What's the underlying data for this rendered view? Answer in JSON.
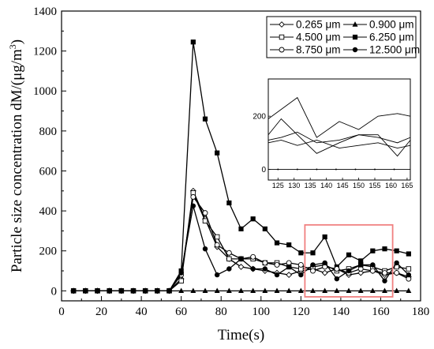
{
  "chart_data": {
    "type": "line",
    "xlabel": "Time(s)",
    "ylabel_prefix": "Particle size concentration dM/(μg/m",
    "ylabel_sup": "3",
    "ylabel_suffix": ")",
    "xlim": [
      0,
      180
    ],
    "ylim": [
      -50,
      1400
    ],
    "x_ticks": [
      0,
      20,
      40,
      60,
      80,
      100,
      120,
      140,
      160,
      180
    ],
    "y_ticks": [
      0,
      200,
      400,
      600,
      800,
      1000,
      1200,
      1400
    ],
    "x": [
      6,
      12,
      18,
      24,
      30,
      36,
      42,
      48,
      54,
      60,
      66,
      72,
      78,
      84,
      90,
      96,
      102,
      108,
      114,
      120,
      126,
      132,
      138,
      144,
      150,
      156,
      162,
      168,
      174
    ],
    "legend_position": "top-right",
    "series": [
      {
        "name": "0.265 μm",
        "marker": "diamond-open",
        "color": "#000000",
        "values": [
          0,
          0,
          0,
          0,
          0,
          0,
          0,
          0,
          0,
          60,
          500,
          360,
          220,
          160,
          120,
          110,
          100,
          90,
          80,
          100,
          110,
          90,
          110,
          80,
          90,
          100,
          80,
          90,
          70
        ]
      },
      {
        "name": "0.900 μm",
        "marker": "triangle-filled",
        "color": "#000000",
        "values": [
          0,
          0,
          0,
          0,
          0,
          0,
          0,
          0,
          0,
          0,
          0,
          0,
          0,
          0,
          0,
          0,
          0,
          0,
          0,
          0,
          0,
          0,
          0,
          0,
          0,
          0,
          0,
          0,
          0
        ]
      },
      {
        "name": "4.500 μm",
        "marker": "square-open",
        "color": "#000000",
        "values": [
          0,
          0,
          0,
          0,
          0,
          0,
          0,
          0,
          0,
          50,
          490,
          350,
          270,
          160,
          160,
          160,
          140,
          140,
          120,
          110,
          120,
          130,
          100,
          110,
          130,
          120,
          100,
          120,
          110
        ]
      },
      {
        "name": "6.250 μm",
        "marker": "square-filled",
        "color": "#000000",
        "values": [
          0,
          0,
          0,
          0,
          0,
          0,
          0,
          0,
          0,
          100,
          1245,
          860,
          690,
          440,
          310,
          360,
          310,
          240,
          230,
          190,
          190,
          270,
          120,
          180,
          150,
          200,
          210,
          200,
          185
        ]
      },
      {
        "name": "8.750 μm",
        "marker": "circle-open",
        "color": "#000000",
        "values": [
          0,
          0,
          0,
          0,
          0,
          0,
          0,
          0,
          0,
          80,
          470,
          390,
          230,
          190,
          160,
          170,
          140,
          130,
          140,
          130,
          100,
          120,
          110,
          90,
          110,
          100,
          90,
          90,
          60
        ]
      },
      {
        "name": "12.500 μm",
        "marker": "circle-filled",
        "color": "#000000",
        "values": [
          0,
          0,
          0,
          0,
          0,
          0,
          0,
          0,
          0,
          90,
          425,
          210,
          80,
          110,
          160,
          110,
          110,
          80,
          120,
          80,
          130,
          140,
          60,
          100,
          130,
          130,
          50,
          140,
          80
        ]
      }
    ],
    "inset": {
      "xlim": [
        122,
        166
      ],
      "ylim": [
        -40,
        340
      ],
      "x_ticks": [
        125,
        130,
        135,
        140,
        145,
        150,
        155,
        160,
        165
      ],
      "y_ticks": [
        0,
        200
      ],
      "lines": [
        {
          "x": [
            122,
            131,
            137,
            144,
            150,
            156,
            162,
            166
          ],
          "values": [
            190,
            270,
            120,
            180,
            150,
            200,
            210,
            200
          ]
        },
        {
          "x": [
            122,
            126,
            131,
            137,
            144,
            150,
            156,
            162,
            166
          ],
          "values": [
            130,
            190,
            130,
            60,
            100,
            130,
            130,
            50,
            110
          ]
        },
        {
          "x": [
            122,
            126,
            131,
            137,
            144,
            150,
            156,
            162,
            166
          ],
          "values": [
            110,
            120,
            140,
            100,
            110,
            130,
            120,
            100,
            120
          ]
        },
        {
          "x": [
            122,
            126,
            131,
            137,
            144,
            150,
            156,
            162,
            166
          ],
          "values": [
            100,
            110,
            90,
            110,
            80,
            90,
            100,
            80,
            90
          ]
        },
        {
          "x": [
            122,
            166
          ],
          "values": [
            0,
            0
          ]
        }
      ]
    },
    "highlight_box": {
      "x": [
        122,
        166
      ],
      "y": [
        -30,
        330
      ],
      "color": "#f08080"
    }
  }
}
